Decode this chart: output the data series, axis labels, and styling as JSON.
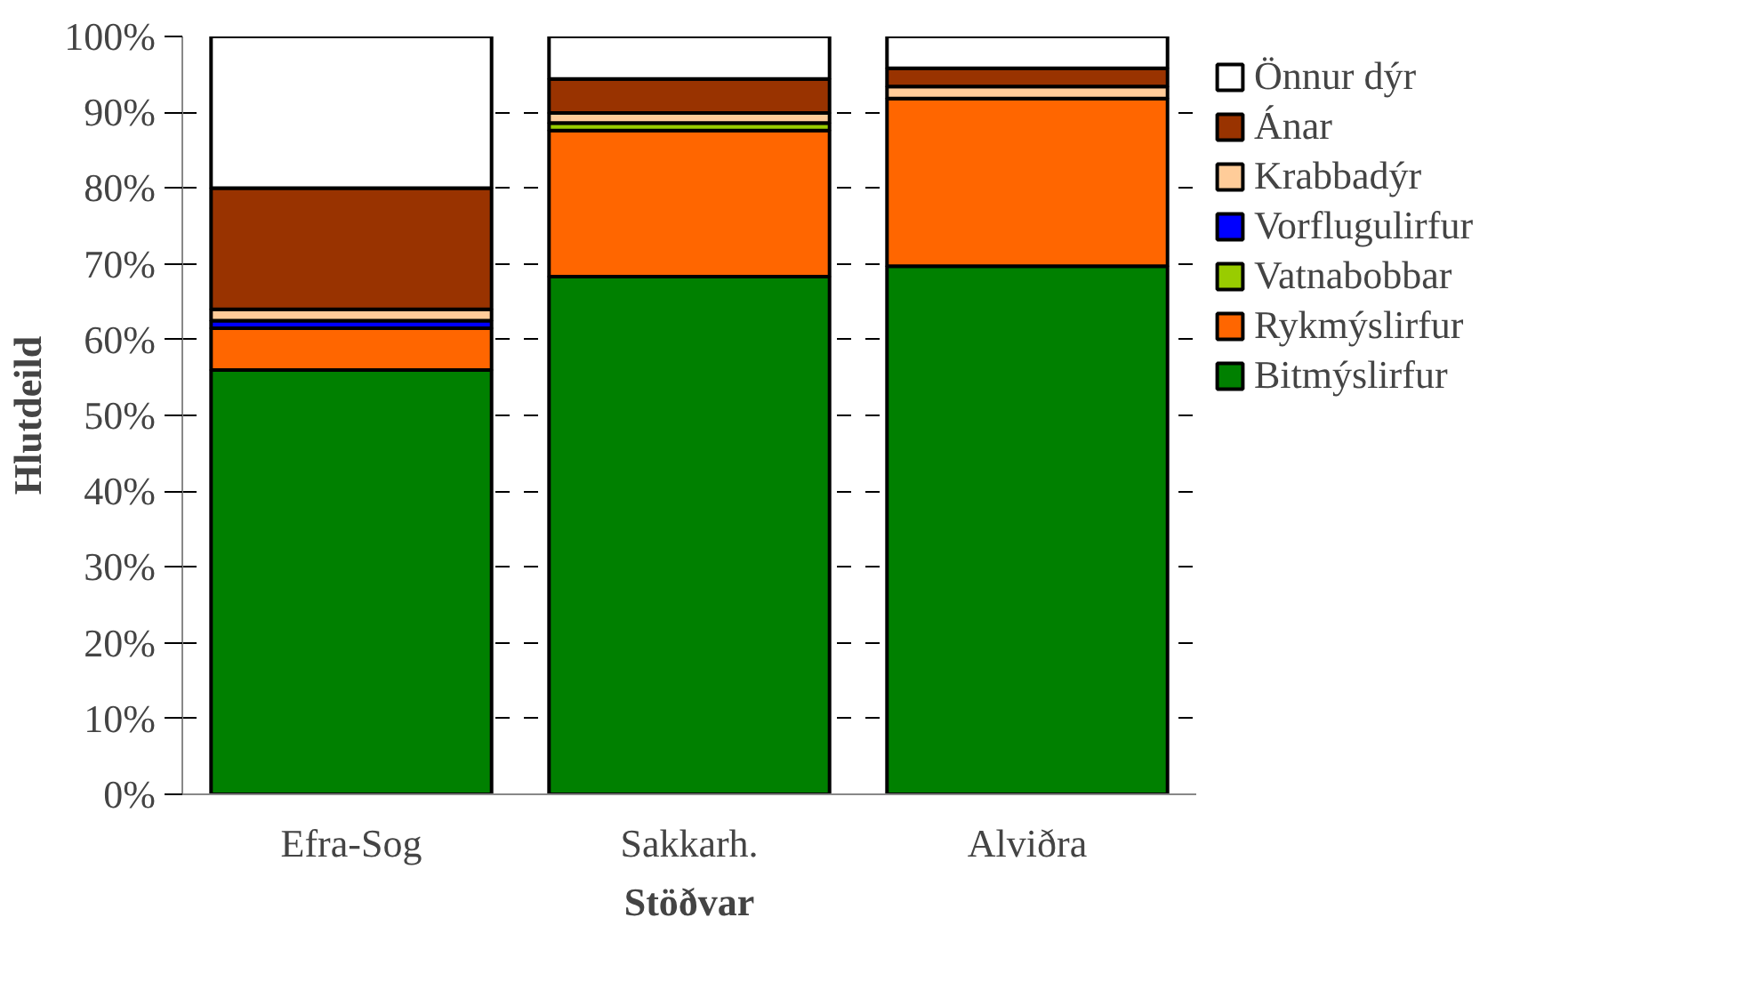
{
  "chart_data": {
    "type": "bar",
    "stacked": true,
    "xlabel": "Stöðvar",
    "ylabel": "Hlutdeild",
    "categories": [
      "Efra-Sog",
      "Sakkarh.",
      "Alviðra"
    ],
    "series": [
      {
        "name": "Bitmýslirfur",
        "color": "#008000",
        "values": [
          56,
          68.3,
          69.7
        ]
      },
      {
        "name": "Rykmýslirfur",
        "color": "#ff6600",
        "values": [
          5.5,
          19.3,
          22.1
        ]
      },
      {
        "name": "Vatnabobbar",
        "color": "#99cc00",
        "values": [
          0,
          1.0,
          0
        ]
      },
      {
        "name": "Vorflugulirfur",
        "color": "#0000ff",
        "values": [
          1.0,
          0,
          0
        ]
      },
      {
        "name": "Krabbadýr",
        "color": "#ffcc99",
        "values": [
          1.5,
          1.3,
          1.6
        ]
      },
      {
        "name": "Ánar",
        "color": "#993300",
        "values": [
          16,
          4.5,
          2.4
        ]
      },
      {
        "name": "Önnur dýr",
        "color": "#ffffff",
        "values": [
          20,
          5.6,
          4.2
        ]
      }
    ],
    "ylim": [
      0,
      100
    ],
    "yticks": [
      {
        "value": 0,
        "label": "0%"
      },
      {
        "value": 10,
        "label": "10%"
      },
      {
        "value": 20,
        "label": "20%"
      },
      {
        "value": 30,
        "label": "30%"
      },
      {
        "value": 40,
        "label": "40%"
      },
      {
        "value": 50,
        "label": "50%"
      },
      {
        "value": 60,
        "label": "60%"
      },
      {
        "value": 70,
        "label": "70%"
      },
      {
        "value": 80,
        "label": "80%"
      },
      {
        "value": 90,
        "label": "90%"
      },
      {
        "value": 100,
        "label": "100%"
      }
    ],
    "grid": "y",
    "legend": "right"
  }
}
